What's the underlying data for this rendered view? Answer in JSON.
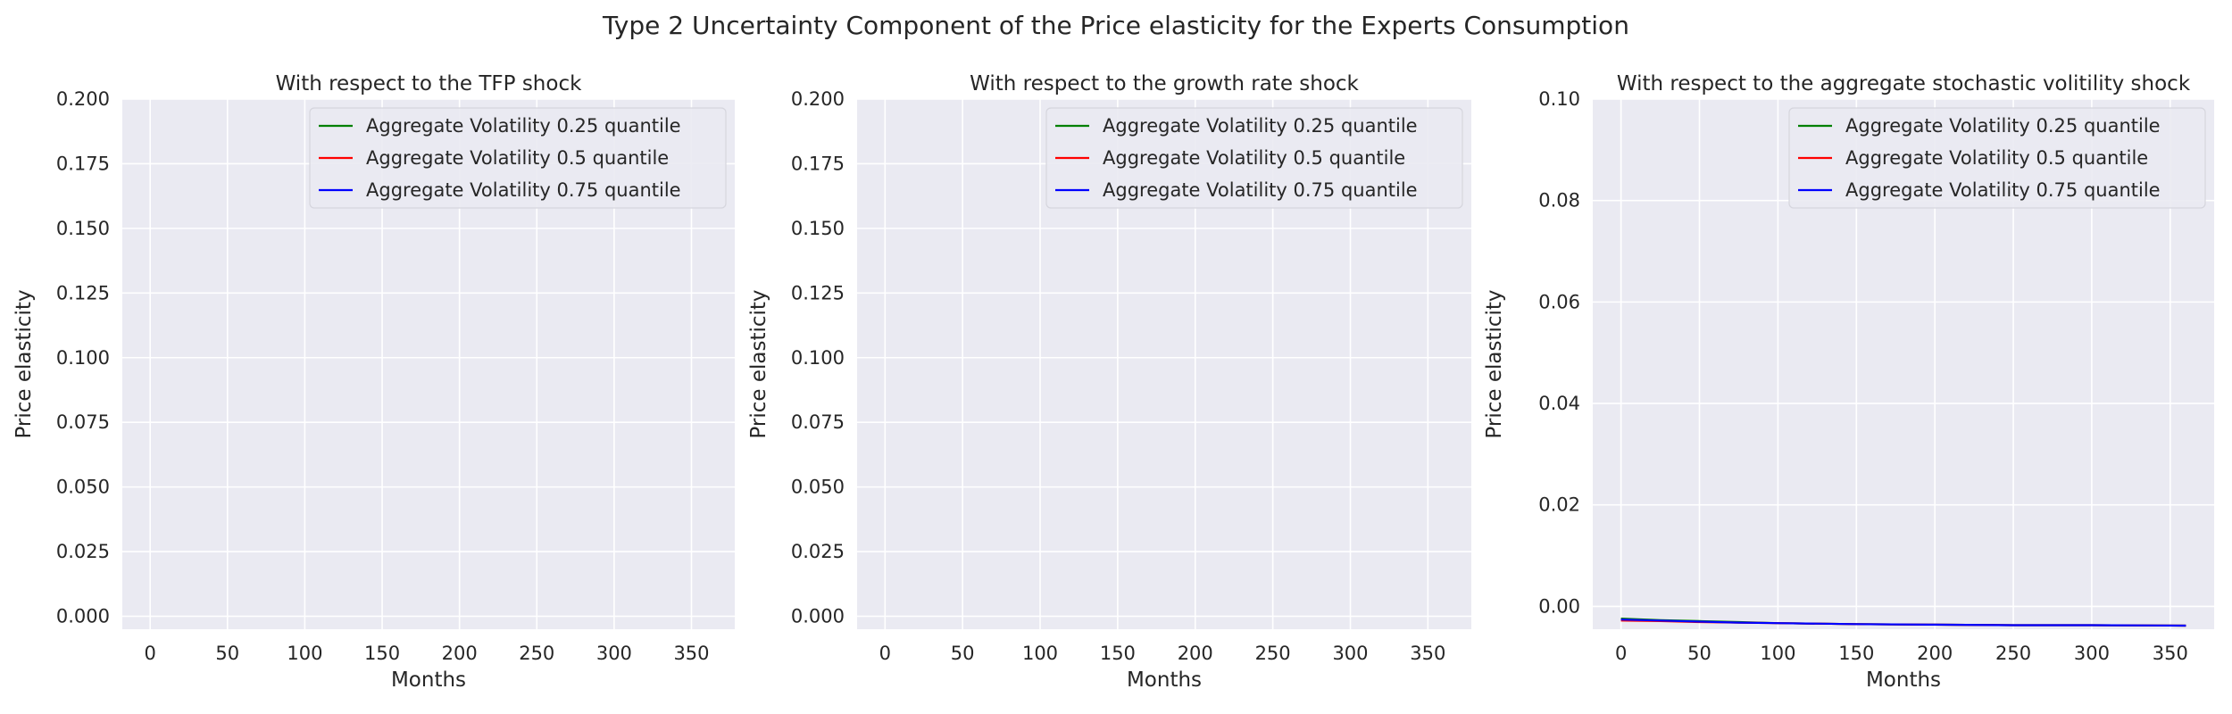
{
  "figure_title": "Type 2 Uncertainty Component of the Price elasticity for the Experts Consumption",
  "colors": {
    "panel_bg": "#EAEAF2",
    "grid": "#FFFFFF",
    "text": "#262626",
    "legend_bg": "#EAEAF2",
    "legend_border": "#D5D5DD"
  },
  "chart_data": [
    {
      "type": "line",
      "title": "With respect to the TFP shock",
      "xlabel": "Months",
      "ylabel": "Price elasticity",
      "xlim": [
        -18,
        378
      ],
      "ylim": [
        -0.005,
        0.2
      ],
      "xticks": [
        0,
        50,
        100,
        150,
        200,
        250,
        300,
        350
      ],
      "xtick_labels": [
        "0",
        "50",
        "100",
        "150",
        "200",
        "250",
        "300",
        "350"
      ],
      "yticks": [
        0,
        0.025,
        0.05,
        0.075,
        0.1,
        0.125,
        0.15,
        0.175,
        0.2
      ],
      "ytick_labels": [
        "0.000",
        "0.025",
        "0.050",
        "0.075",
        "0.100",
        "0.125",
        "0.150",
        "0.175",
        "0.200"
      ],
      "grid": true,
      "legend_position": "top-right",
      "series": [
        {
          "name": "Aggregate Volatility 0.25 quantile",
          "color": "#008000",
          "x": [],
          "y": []
        },
        {
          "name": "Aggregate Volatility 0.5 quantile",
          "color": "#FF0000",
          "x": [],
          "y": []
        },
        {
          "name": "Aggregate Volatility 0.75 quantile",
          "color": "#0000FF",
          "x": [],
          "y": []
        }
      ]
    },
    {
      "type": "line",
      "title": "With respect to the growth rate shock",
      "xlabel": "Months",
      "ylabel": "Price elasticity",
      "xlim": [
        -18,
        378
      ],
      "ylim": [
        -0.005,
        0.2
      ],
      "xticks": [
        0,
        50,
        100,
        150,
        200,
        250,
        300,
        350
      ],
      "xtick_labels": [
        "0",
        "50",
        "100",
        "150",
        "200",
        "250",
        "300",
        "350"
      ],
      "yticks": [
        0,
        0.025,
        0.05,
        0.075,
        0.1,
        0.125,
        0.15,
        0.175,
        0.2
      ],
      "ytick_labels": [
        "0.000",
        "0.025",
        "0.050",
        "0.075",
        "0.100",
        "0.125",
        "0.150",
        "0.175",
        "0.200"
      ],
      "grid": true,
      "legend_position": "top-right",
      "series": [
        {
          "name": "Aggregate Volatility 0.25 quantile",
          "color": "#008000",
          "x": [],
          "y": []
        },
        {
          "name": "Aggregate Volatility 0.5 quantile",
          "color": "#FF0000",
          "x": [],
          "y": []
        },
        {
          "name": "Aggregate Volatility 0.75 quantile",
          "color": "#0000FF",
          "x": [],
          "y": []
        }
      ]
    },
    {
      "type": "line",
      "title": "With respect to the aggregate stochastic volitility shock",
      "xlabel": "Months",
      "ylabel": "Price elasticity",
      "xlim": [
        -18,
        378
      ],
      "ylim": [
        -0.0045,
        0.1
      ],
      "xticks": [
        0,
        50,
        100,
        150,
        200,
        250,
        300,
        350
      ],
      "xtick_labels": [
        "0",
        "50",
        "100",
        "150",
        "200",
        "250",
        "300",
        "350"
      ],
      "yticks": [
        0,
        0.02,
        0.04,
        0.06,
        0.08,
        0.1
      ],
      "ytick_labels": [
        "0.00",
        "0.02",
        "0.04",
        "0.06",
        "0.08",
        "0.10"
      ],
      "grid": true,
      "legend_position": "top-right",
      "series": [
        {
          "name": "Aggregate Volatility 0.25 quantile",
          "color": "#008000",
          "x": [
            0,
            25,
            50,
            75,
            100,
            150,
            200,
            250,
            300,
            360
          ],
          "y": [
            -0.0024,
            -0.0027,
            -0.0029,
            -0.0031,
            -0.0033,
            -0.0035,
            -0.0036,
            -0.0037,
            -0.0037,
            -0.0038
          ]
        },
        {
          "name": "Aggregate Volatility 0.5 quantile",
          "color": "#FF0000",
          "x": [
            0,
            25,
            50,
            75,
            100,
            150,
            200,
            250,
            300,
            360
          ],
          "y": [
            -0.0028,
            -0.0029,
            -0.0031,
            -0.0032,
            -0.0033,
            -0.0035,
            -0.0036,
            -0.0037,
            -0.0037,
            -0.0038
          ]
        },
        {
          "name": "Aggregate Volatility 0.75 quantile",
          "color": "#0000FF",
          "x": [
            0,
            25,
            50,
            75,
            100,
            150,
            200,
            250,
            300,
            360
          ],
          "y": [
            -0.0026,
            -0.0028,
            -0.003,
            -0.0032,
            -0.0033,
            -0.0035,
            -0.0036,
            -0.0037,
            -0.0037,
            -0.0038
          ]
        }
      ]
    }
  ]
}
